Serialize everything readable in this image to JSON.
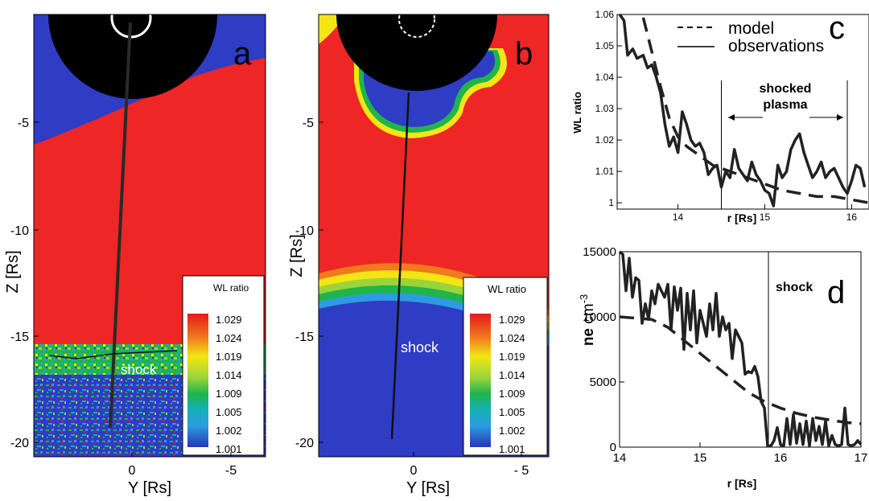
{
  "colors": {
    "field_red": "#ee2626",
    "field_blue": "#2f3cc4",
    "sun_black": "#000000",
    "trace": "#222222"
  },
  "icons": {
    "panel_a_sun": "occulter-disk-icon",
    "panel_b_sun": "occulter-disk-icon"
  },
  "panels": {
    "a": {
      "letter": "a",
      "xlabel": "Y [Rs]",
      "ylabel": "Z [Rs]",
      "xticks": [
        "0",
        "-5"
      ],
      "yticks": [
        "-5",
        "-10",
        "-15",
        "-20"
      ],
      "shock_label": "shock",
      "legend_title": "WL ratio",
      "legend_values": [
        "1.029",
        "1.024",
        "1.019",
        "1.014",
        "1.009",
        "1.005",
        "1.002",
        "1.001"
      ]
    },
    "b": {
      "letter": "b",
      "xlabel": "Y [Rs]",
      "ylabel": "Z [Rs]",
      "xticks": [
        "0",
        "- 5"
      ],
      "yticks": [
        "-5",
        "-10",
        "-15",
        "-20"
      ],
      "shock_label": "shock",
      "legend_title": "WL ratio",
      "legend_values": [
        "1.029",
        "1.024",
        "1.019",
        "1.014",
        "1.009",
        "1.005",
        "1.002",
        "1.001"
      ]
    }
  },
  "chart_data": [
    {
      "type": "line",
      "panel": "c",
      "letter": "c",
      "xlabel": "r [Rs]",
      "ylabel": "WL ratio",
      "xlim": [
        13.3,
        16.2
      ],
      "ylim": [
        0.998,
        1.06
      ],
      "xticks": [
        14,
        15,
        16
      ],
      "yticks": [
        1,
        1.01,
        1.02,
        1.03,
        1.04,
        1.05,
        1.06
      ],
      "ytick_labels": [
        "1",
        "1.01",
        "1.02",
        "1.03",
        "1.04",
        "1.05",
        "1.06"
      ],
      "legend": [
        "model",
        "observations"
      ],
      "annotation": [
        "shocked",
        "plasma"
      ],
      "marker_lines_x": [
        14.5,
        15.95
      ],
      "series": [
        {
          "name": "observations",
          "style": "solid",
          "x": [
            13.33,
            13.38,
            13.42,
            13.48,
            13.53,
            13.6,
            13.65,
            13.7,
            13.75,
            13.8,
            13.85,
            13.9,
            13.95,
            14.0,
            14.05,
            14.1,
            14.15,
            14.2,
            14.25,
            14.3,
            14.35,
            14.4,
            14.45,
            14.5,
            14.55,
            14.6,
            14.65,
            14.7,
            14.75,
            14.8,
            14.85,
            14.9,
            14.95,
            15.0,
            15.05,
            15.1,
            15.15,
            15.2,
            15.25,
            15.3,
            15.35,
            15.4,
            15.45,
            15.5,
            15.55,
            15.6,
            15.65,
            15.7,
            15.75,
            15.8,
            15.85,
            15.9,
            15.95,
            16.0,
            16.05,
            16.1,
            16.15
          ],
          "y": [
            1.06,
            1.058,
            1.047,
            1.049,
            1.046,
            1.047,
            1.043,
            1.044,
            1.04,
            1.035,
            1.025,
            1.018,
            1.021,
            1.016,
            1.029,
            1.025,
            1.02,
            1.018,
            1.019,
            1.016,
            1.009,
            1.011,
            1.012,
            1.005,
            1.01,
            1.008,
            1.017,
            1.011,
            1.009,
            1.007,
            1.013,
            1.009,
            1.007,
            1.004,
            1.003,
            0.999,
            1.012,
            1.008,
            1.01,
            1.017,
            1.02,
            1.022,
            1.016,
            1.012,
            1.008,
            1.01,
            1.013,
            1.008,
            1.01,
            1.011,
            1.008,
            1.005,
            1.003,
            1.007,
            1.012,
            1.011,
            1.005
          ]
        },
        {
          "name": "model",
          "style": "dashed",
          "x": [
            13.6,
            13.7,
            13.8,
            13.9,
            14.0,
            14.1,
            14.2,
            14.3,
            14.4,
            14.5,
            14.6,
            14.7,
            14.8,
            14.9,
            15.0,
            15.2,
            15.4,
            15.6,
            15.8,
            16.0,
            16.2
          ],
          "y": [
            1.059,
            1.048,
            1.037,
            1.027,
            1.021,
            1.018,
            1.016,
            1.014,
            1.012,
            1.011,
            1.01,
            1.009,
            1.008,
            1.007,
            1.006,
            1.004,
            1.003,
            1.002,
            1.002,
            1.001,
            1.0
          ]
        }
      ]
    },
    {
      "type": "line",
      "panel": "d",
      "letter": "d",
      "xlabel": "r [Rs]",
      "ylabel": "ne",
      "ylabel_unit": "cm",
      "ylabel_exp": "-3",
      "xlim": [
        14,
        17
      ],
      "ylim": [
        0,
        15000
      ],
      "xticks": [
        14,
        15,
        16,
        17
      ],
      "yticks": [
        0,
        5000,
        10000,
        15000
      ],
      "annotation": "shock",
      "marker_lines_x": [
        15.85
      ],
      "series": [
        {
          "name": "observations",
          "style": "solid",
          "x": [
            14.0,
            14.04,
            14.08,
            14.12,
            14.16,
            14.2,
            14.24,
            14.28,
            14.32,
            14.36,
            14.4,
            14.44,
            14.48,
            14.52,
            14.56,
            14.6,
            14.64,
            14.68,
            14.72,
            14.76,
            14.8,
            14.84,
            14.88,
            14.92,
            14.96,
            15.0,
            15.04,
            15.08,
            15.12,
            15.16,
            15.2,
            15.24,
            15.28,
            15.32,
            15.36,
            15.4,
            15.44,
            15.48,
            15.52,
            15.56,
            15.6,
            15.64,
            15.68,
            15.72,
            15.76,
            15.8,
            15.84,
            15.88,
            15.92,
            15.96,
            16.0,
            16.04,
            16.08,
            16.12,
            16.16,
            16.2,
            16.24,
            16.28,
            16.32,
            16.36,
            16.4,
            16.44,
            16.48,
            16.52,
            16.56,
            16.6,
            16.64,
            16.68,
            16.72,
            16.76,
            16.8,
            16.84,
            16.88,
            16.92,
            16.96,
            17.0
          ],
          "y": [
            15000,
            14800,
            12000,
            14500,
            11500,
            13000,
            12800,
            9500,
            11000,
            9800,
            12000,
            11000,
            12500,
            12000,
            11500,
            12500,
            9000,
            12300,
            10500,
            12200,
            7500,
            11800,
            9000,
            12000,
            8000,
            10500,
            9500,
            8500,
            11000,
            9000,
            11800,
            8500,
            10000,
            9000,
            9500,
            6800,
            9000,
            8500,
            8000,
            5600,
            5800,
            5700,
            6200,
            5400,
            3500,
            3000,
            100,
            100,
            500,
            1500,
            200,
            100,
            2200,
            200,
            2500,
            300,
            1800,
            200,
            2000,
            100,
            2200,
            500,
            1600,
            200,
            2000,
            100,
            900,
            200,
            100,
            200,
            3000,
            200,
            100,
            200,
            500,
            200
          ]
        },
        {
          "name": "model",
          "style": "dashed",
          "x": [
            14.0,
            14.2,
            14.4,
            14.6,
            14.8,
            15.0,
            15.2,
            15.4,
            15.6,
            15.8,
            16.0,
            16.2,
            16.4,
            16.6,
            16.8,
            17.0
          ],
          "y": [
            10000,
            9900,
            9800,
            9200,
            8200,
            7200,
            6200,
            5200,
            4200,
            3500,
            3000,
            2600,
            2300,
            2100,
            1900,
            1800
          ]
        }
      ]
    }
  ]
}
